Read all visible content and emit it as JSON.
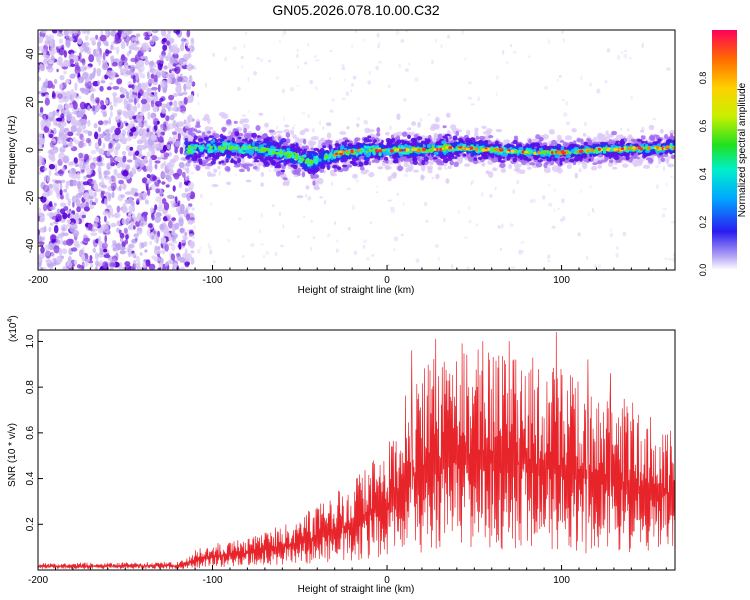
{
  "title": "GN05.2026.078.10.00.C32",
  "colors": {
    "snr_line": "#e8242b",
    "axis": "#000000",
    "noise": "#8a3fe0",
    "noise_dark": "#5a00d8",
    "noise_light": "#d9c7f5"
  },
  "chart_data": [
    {
      "type": "heatmap",
      "name": "spectrogram",
      "xlabel": "Height of straight line (km)",
      "ylabel": "Frequency (Hz)",
      "xlim": [
        -200,
        165
      ],
      "ylim": [
        -50,
        50
      ],
      "xticks": [
        -200,
        -100,
        0,
        100
      ],
      "yticks": [
        -40,
        -20,
        0,
        20,
        40
      ],
      "signal_start_km": -115,
      "ridge_center": [
        {
          "x": -115,
          "y": 0
        },
        {
          "x": -100,
          "y": 1
        },
        {
          "x": -85,
          "y": 1
        },
        {
          "x": -70,
          "y": 0
        },
        {
          "x": -55,
          "y": -2
        },
        {
          "x": -45,
          "y": -5
        },
        {
          "x": -35,
          "y": -3
        },
        {
          "x": -25,
          "y": -1
        },
        {
          "x": -10,
          "y": 0
        },
        {
          "x": 20,
          "y": 0
        },
        {
          "x": 40,
          "y": 1
        },
        {
          "x": 60,
          "y": 0
        },
        {
          "x": 80,
          "y": -1
        },
        {
          "x": 100,
          "y": -1
        },
        {
          "x": 120,
          "y": 0
        },
        {
          "x": 140,
          "y": 0.5
        },
        {
          "x": 165,
          "y": 1
        }
      ],
      "colorbar": {
        "label": "Normalized spectral amplitude",
        "range": [
          0,
          1
        ],
        "ticks": [
          "0.0",
          "0.2",
          "0.4",
          "0.6",
          "0.8"
        ]
      }
    },
    {
      "type": "line",
      "name": "snr",
      "xlabel": "Height of straight line (km)",
      "ylabel": "SNR (10 * v/v)",
      "scale_label": "(x10",
      "scale_exp": "4",
      "scale_close": ")",
      "xlim": [
        -200,
        165
      ],
      "ylim": [
        0,
        1.05
      ],
      "xticks": [
        -200,
        -100,
        0,
        100
      ],
      "yticks": [
        "0.2",
        "0.4",
        "0.6",
        "0.8",
        "1.0"
      ],
      "envelope": [
        {
          "x": -200,
          "low": 0.005,
          "high": 0.03
        },
        {
          "x": -120,
          "low": 0.005,
          "high": 0.035
        },
        {
          "x": -105,
          "low": 0.01,
          "high": 0.11
        },
        {
          "x": -80,
          "low": 0.02,
          "high": 0.14
        },
        {
          "x": -60,
          "low": 0.02,
          "high": 0.2
        },
        {
          "x": -40,
          "low": 0.03,
          "high": 0.28
        },
        {
          "x": -20,
          "low": 0.04,
          "high": 0.4
        },
        {
          "x": 0,
          "low": 0.06,
          "high": 0.55
        },
        {
          "x": 15,
          "low": 0.07,
          "high": 0.85
        },
        {
          "x": 30,
          "low": 0.08,
          "high": 0.95
        },
        {
          "x": 60,
          "low": 0.08,
          "high": 0.97
        },
        {
          "x": 90,
          "low": 0.08,
          "high": 0.92
        },
        {
          "x": 120,
          "low": 0.07,
          "high": 0.8
        },
        {
          "x": 145,
          "low": 0.07,
          "high": 0.72
        },
        {
          "x": 165,
          "low": 0.1,
          "high": 0.6
        }
      ],
      "peaks": [
        {
          "x": 14,
          "y": 0.96
        },
        {
          "x": 28,
          "y": 1.01
        },
        {
          "x": 43,
          "y": 0.99
        },
        {
          "x": 55,
          "y": 1.0
        },
        {
          "x": 70,
          "y": 1.0
        },
        {
          "x": 97,
          "y": 1.04
        },
        {
          "x": 115,
          "y": 0.92
        },
        {
          "x": 128,
          "y": 0.86
        }
      ]
    }
  ]
}
